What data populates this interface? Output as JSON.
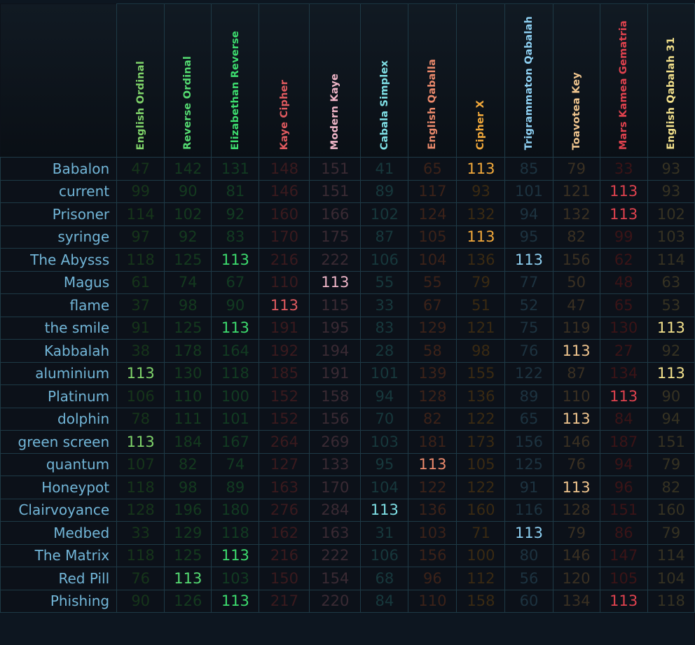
{
  "columns": [
    {
      "label": "English Ordinal",
      "color": "#7fd36a",
      "dim": "#16351a"
    },
    {
      "label": "Reverse Ordinal",
      "color": "#55dc72",
      "dim": "#143a1f"
    },
    {
      "label": "Elizabethan Reverse",
      "color": "#3ddc6e",
      "dim": "#123b22"
    },
    {
      "label": "Kaye Cipher",
      "color": "#e05a5f",
      "dim": "#3a1a1e"
    },
    {
      "label": "Modern Kaye",
      "color": "#f0b6c8",
      "dim": "#3a2a33"
    },
    {
      "label": "Cabala Simplex",
      "color": "#7fe0e6",
      "dim": "#17383c"
    },
    {
      "label": "English Qaballa",
      "color": "#ec8a6c",
      "dim": "#3c2219"
    },
    {
      "label": "Cipher X",
      "color": "#f2a93b",
      "dim": "#3a2a12"
    },
    {
      "label": "Trigrammaton Qabalah",
      "color": "#8ed0f2",
      "dim": "#1d3340"
    },
    {
      "label": "Toavotea Key",
      "color": "#f0c58e",
      "dim": "#3a3022"
    },
    {
      "label": "Mars Kamea Gematria",
      "color": "#e0424e",
      "dim": "#3a1417"
    },
    {
      "label": "English Qabalah 31",
      "color": "#f4e28c",
      "dim": "#363222"
    }
  ],
  "highlight_value": 113,
  "rows": [
    {
      "name": "Babalon",
      "values": [
        47,
        142,
        131,
        148,
        151,
        41,
        65,
        113,
        85,
        79,
        33,
        93
      ]
    },
    {
      "name": "current",
      "values": [
        99,
        90,
        81,
        146,
        151,
        89,
        117,
        93,
        101,
        121,
        113,
        93
      ]
    },
    {
      "name": "Prisoner",
      "values": [
        114,
        102,
        92,
        160,
        166,
        102,
        124,
        132,
        94,
        132,
        113,
        102
      ]
    },
    {
      "name": "syringe",
      "values": [
        97,
        92,
        83,
        170,
        175,
        87,
        105,
        113,
        95,
        82,
        99,
        103
      ]
    },
    {
      "name": "The Abysss",
      "values": [
        118,
        125,
        113,
        216,
        222,
        106,
        104,
        136,
        113,
        156,
        62,
        114
      ]
    },
    {
      "name": "Magus",
      "values": [
        61,
        74,
        67,
        110,
        113,
        55,
        55,
        79,
        77,
        50,
        48,
        63
      ]
    },
    {
      "name": "flame",
      "values": [
        37,
        98,
        90,
        113,
        115,
        33,
        67,
        51,
        52,
        47,
        65,
        53
      ]
    },
    {
      "name": "the smile",
      "values": [
        91,
        125,
        113,
        191,
        195,
        83,
        129,
        121,
        75,
        119,
        130,
        113
      ]
    },
    {
      "name": "Kabbalah",
      "values": [
        38,
        178,
        164,
        192,
        194,
        28,
        58,
        98,
        76,
        113,
        27,
        92
      ]
    },
    {
      "name": "aluminium",
      "values": [
        113,
        130,
        118,
        185,
        191,
        101,
        139,
        155,
        122,
        87,
        134,
        113
      ]
    },
    {
      "name": "Platinum",
      "values": [
        106,
        110,
        100,
        152,
        158,
        94,
        128,
        136,
        89,
        110,
        113,
        90
      ]
    },
    {
      "name": "dolphin",
      "values": [
        78,
        111,
        101,
        152,
        156,
        70,
        82,
        122,
        65,
        113,
        84,
        94
      ]
    },
    {
      "name": "green screen",
      "values": [
        113,
        184,
        167,
        264,
        269,
        103,
        181,
        173,
        156,
        146,
        187,
        151
      ]
    },
    {
      "name": "quantum",
      "values": [
        107,
        82,
        74,
        127,
        133,
        95,
        113,
        105,
        125,
        76,
        94,
        79
      ]
    },
    {
      "name": "Honeypot",
      "values": [
        118,
        98,
        89,
        163,
        170,
        104,
        122,
        122,
        91,
        113,
        96,
        82
      ]
    },
    {
      "name": "Clairvoyance",
      "values": [
        128,
        196,
        180,
        276,
        284,
        113,
        136,
        160,
        116,
        128,
        151,
        160
      ]
    },
    {
      "name": "Medbed",
      "values": [
        33,
        129,
        118,
        162,
        163,
        31,
        103,
        71,
        113,
        79,
        86,
        79
      ]
    },
    {
      "name": "The Matrix",
      "values": [
        118,
        125,
        113,
        216,
        222,
        106,
        156,
        100,
        80,
        146,
        147,
        114
      ]
    },
    {
      "name": "Red Pill",
      "values": [
        76,
        113,
        103,
        150,
        154,
        68,
        96,
        112,
        56,
        120,
        105,
        104
      ]
    },
    {
      "name": "Phishing",
      "values": [
        90,
        126,
        113,
        217,
        220,
        84,
        110,
        158,
        60,
        134,
        113,
        118
      ]
    }
  ]
}
